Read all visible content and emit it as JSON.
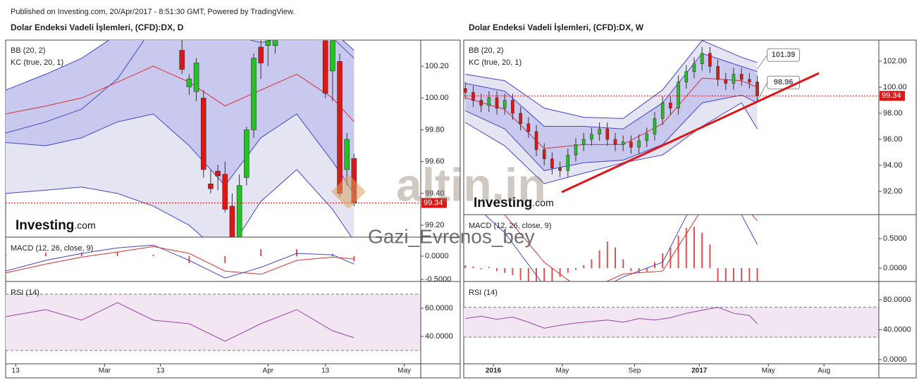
{
  "header": "Published on Investing.com, 20/Apr/2017 - 8:51:30 GMT, Powered by TradingView.",
  "watermark": "altin.in",
  "watermark_suffix": ".in",
  "watermark_user": "Gazi_Evrenos_bey",
  "logo": "Investing",
  "logo_suffix": ".com",
  "chart_data": [
    {
      "type": "candlestick",
      "title": "Dolar Endeksi Vadeli İşlemleri, (CFD):DX, D",
      "bb_label": "BB (20, 2)",
      "kc_label": "KC (true, 20, 1)",
      "colors": {
        "up": "#22c322",
        "down": "#e21515",
        "bb": "#e4e4f2",
        "kc": "#c9c9f0",
        "band_line": "#4646c8",
        "basis": "#d83030"
      },
      "x": [
        24,
        25,
        26,
        27,
        28,
        29,
        30,
        31,
        32,
        33,
        34,
        35,
        36,
        37,
        44,
        45,
        46,
        47,
        48
      ],
      "open": [
        100.3,
        100.07,
        100.04,
        100.0,
        99.46,
        99.54,
        99.52,
        99.32,
        99.12,
        99.5,
        99.8,
        100.32,
        100.33,
        100.33,
        100.36,
        100.17,
        100.23,
        99.55,
        99.62
      ],
      "high": [
        100.4,
        100.15,
        100.25,
        100.05,
        99.55,
        99.58,
        99.6,
        99.4,
        99.52,
        99.82,
        100.28,
        100.4,
        100.42,
        100.45,
        100.5,
        100.45,
        100.28,
        99.78,
        99.65
      ],
      "low": [
        100.15,
        100.02,
        99.98,
        99.5,
        99.4,
        99.42,
        99.28,
        98.9,
        98.95,
        99.45,
        99.75,
        100.12,
        100.2,
        100.28,
        100.0,
        99.98,
        99.38,
        99.45,
        99.32
      ],
      "close": [
        100.18,
        100.12,
        100.22,
        99.55,
        99.43,
        99.51,
        99.3,
        99.0,
        99.45,
        99.8,
        100.25,
        100.22,
        100.36,
        100.38,
        100.03,
        100.36,
        99.4,
        99.74,
        99.34
      ],
      "xlim": [
        -0.6,
        57.3
      ],
      "xticks": [
        {
          "value": 0.8,
          "label": "13"
        },
        {
          "value": 13.2,
          "label": "Mar"
        },
        {
          "value": 21,
          "label": "13"
        },
        {
          "value": 36,
          "label": "Apr"
        },
        {
          "value": 44,
          "label": "13"
        },
        {
          "value": 55,
          "label": "May"
        }
      ],
      "ylim": [
        99.125,
        100.364
      ],
      "yticks": [
        {
          "value": 99.2,
          "label": "99.20"
        },
        {
          "value": 99.4,
          "label": "99.40"
        },
        {
          "value": 99.6,
          "label": "99.60"
        },
        {
          "value": 99.8,
          "label": "99.80"
        },
        {
          "value": 100,
          "label": "100.00"
        },
        {
          "value": 100.2,
          "label": "100.20"
        }
      ],
      "last_price": 99.34,
      "bands": {
        "x": [
          -0.6,
          5,
          10,
          15,
          20,
          25,
          30,
          35,
          40,
          45,
          48
        ],
        "bb_upper": [
          99.78,
          99.85,
          99.93,
          100.12,
          100.45,
          100.7,
          100.8,
          100.7,
          100.55,
          100.38,
          100.25
        ],
        "bb_lower": [
          99.4,
          99.42,
          99.44,
          99.4,
          99.32,
          99.2,
          99.0,
          99.35,
          99.55,
          99.3,
          99.1
        ],
        "kc_upper": [
          100.05,
          100.15,
          100.25,
          100.4,
          100.45,
          100.48,
          100.4,
          100.35,
          100.4,
          100.42,
          100.3
        ],
        "kc_lower": [
          99.72,
          99.7,
          99.75,
          99.85,
          99.9,
          99.7,
          99.45,
          99.75,
          99.9,
          99.6,
          99.4
        ],
        "basis": [
          99.9,
          99.95,
          100.0,
          100.1,
          100.2,
          100.1,
          99.95,
          100.05,
          100.15,
          100.0,
          99.85
        ]
      },
      "macd": {
        "label": "MACD (12, 26, close, 9)",
        "x": [
          -0.6,
          5,
          10,
          15,
          20,
          25,
          30,
          35,
          40,
          45,
          48
        ],
        "macd": [
          -0.32,
          -0.09,
          0.06,
          0.18,
          0.24,
          -0.09,
          -0.47,
          -0.24,
          0.06,
          0.03,
          -0.17
        ],
        "signal": [
          -0.36,
          -0.17,
          -0.02,
          0.09,
          0.21,
          0.06,
          -0.32,
          -0.39,
          -0.09,
          -0.02,
          -0.06
        ],
        "hist_x": [
          -0.6,
          5,
          10,
          15,
          20,
          25,
          30,
          35,
          40,
          45,
          48
        ],
        "histogram": [
          0.04,
          0.08,
          0.08,
          0.09,
          0.03,
          -0.15,
          -0.15,
          0.15,
          0.15,
          0.05,
          -0.11
        ],
        "ylim": [
          -0.545,
          0.41
        ],
        "yticks": [
          {
            "value": -0.5,
            "label": "-0.5000"
          },
          {
            "value": 0,
            "label": "0.0000"
          }
        ]
      },
      "rsi": {
        "label": "RSI (14)",
        "x": [
          -0.6,
          5,
          10,
          15,
          20,
          25,
          30,
          35,
          40,
          45,
          48
        ],
        "values": [
          54,
          59,
          51.5,
          64,
          51.5,
          49,
          36.5,
          49,
          59,
          44,
          39
        ],
        "levels": [
          30,
          70
        ],
        "ylim": [
          20.5,
          79
        ],
        "yticks": [
          {
            "value": 40,
            "label": "40.0000"
          },
          {
            "value": 60,
            "label": "60.0000"
          }
        ]
      }
    },
    {
      "type": "candlestick",
      "title": "Dolar Endeksi Vadeli İşlemleri, (CFD):DX, W",
      "bb_label": "BB (20, 2)",
      "kc_label": "KC (true, 20, 1)",
      "colors": {
        "up": "#22c322",
        "down": "#e21515",
        "bb": "#e4e4f2",
        "kc": "#c9c9f0",
        "band_line": "#4646c8",
        "basis": "#d83030"
      },
      "x": [
        0,
        2,
        4,
        6,
        8,
        10,
        12,
        14,
        16,
        18,
        20,
        22,
        24,
        26,
        28,
        30,
        32,
        34,
        36,
        38,
        40,
        42,
        44,
        46,
        48,
        50,
        52,
        54,
        56,
        58,
        60,
        62,
        64,
        66,
        68,
        70,
        72,
        74
      ],
      "open": [
        99.9,
        99.6,
        99.0,
        98.6,
        99.2,
        98.4,
        99.0,
        98.0,
        97.2,
        96.6,
        95.2,
        94.5,
        93.8,
        93.6,
        94.8,
        95.6,
        96.0,
        96.4,
        96.8,
        96.0,
        95.6,
        95.8,
        95.4,
        95.9,
        96.4,
        97.6,
        98.8,
        98.4,
        100.4,
        101.2,
        101.8,
        102.6,
        101.6,
        100.6,
        100.3,
        101.0,
        100.6,
        100.4
      ],
      "high": [
        100.4,
        100.1,
        99.5,
        99.7,
        99.7,
        99.5,
        99.5,
        98.5,
        97.7,
        97.1,
        95.7,
        95.0,
        94.3,
        95.3,
        96.1,
        96.5,
        96.9,
        97.3,
        97.3,
        96.5,
        96.3,
        96.3,
        96.4,
        96.9,
        98.1,
        99.3,
        99.3,
        100.9,
        101.7,
        102.3,
        103.1,
        103.1,
        102.1,
        101.1,
        101.5,
        101.5,
        101.1,
        100.9
      ],
      "low": [
        99.1,
        98.5,
        98.1,
        98.1,
        97.9,
        97.9,
        97.5,
        96.7,
        96.1,
        94.7,
        94.0,
        93.3,
        93.1,
        93.1,
        94.3,
        95.1,
        95.5,
        95.9,
        95.5,
        95.1,
        95.1,
        94.9,
        94.9,
        95.4,
        95.9,
        97.1,
        97.9,
        97.9,
        99.9,
        100.7,
        101.3,
        101.1,
        100.1,
        99.8,
        99.8,
        100.1,
        99.9,
        98.84
      ],
      "close": [
        99.6,
        99.0,
        98.6,
        99.2,
        98.4,
        99.0,
        98.0,
        97.2,
        96.6,
        95.2,
        94.5,
        93.8,
        93.6,
        94.8,
        95.6,
        96.0,
        96.4,
        96.8,
        96.0,
        95.6,
        95.8,
        95.4,
        95.9,
        96.4,
        97.6,
        98.8,
        98.4,
        100.4,
        101.2,
        101.8,
        102.6,
        101.6,
        100.6,
        100.3,
        101.0,
        100.6,
        100.4,
        99.34
      ],
      "xlim": [
        -0.4,
        104.8
      ],
      "xticks": [
        {
          "value": 7.1,
          "label": "2016"
        },
        {
          "value": 24.6,
          "label": "May"
        },
        {
          "value": 42.9,
          "label": "Sep"
        },
        {
          "value": 59.3,
          "label": "2017"
        },
        {
          "value": 76.8,
          "label": "May"
        },
        {
          "value": 90.9,
          "label": "Aug"
        }
      ],
      "ylim": [
        90.22,
        103.62
      ],
      "yticks": [
        {
          "value": 92,
          "label": "92.00"
        },
        {
          "value": 94,
          "label": "94.00"
        },
        {
          "value": 96,
          "label": "96.00"
        },
        {
          "value": 98,
          "label": "98.00"
        },
        {
          "value": 100,
          "label": "100.00"
        },
        {
          "value": 102,
          "label": "102.00"
        }
      ],
      "last_price": 99.34,
      "annotations": [
        101.39,
        98.96
      ],
      "bands": {
        "x": [
          0,
          10,
          20,
          30,
          40,
          50,
          60,
          70,
          74
        ],
        "bb_upper": [
          101.0,
          100.5,
          98.4,
          97.7,
          97.6,
          99.8,
          103.6,
          102.3,
          101.9
        ],
        "bb_lower": [
          97.3,
          95.5,
          92.6,
          93.4,
          94.2,
          94.8,
          97.0,
          98.8,
          96.8
        ],
        "kc_upper": [
          100.3,
          99.7,
          97.0,
          97.0,
          96.8,
          98.8,
          102.6,
          101.6,
          101.2
        ],
        "kc_lower": [
          98.2,
          96.8,
          93.6,
          94.2,
          94.4,
          95.6,
          98.8,
          99.4,
          98.8
        ],
        "basis": [
          99.2,
          98.3,
          95.3,
          95.6,
          95.6,
          97.2,
          100.7,
          100.5,
          100.0
        ]
      },
      "macd": {
        "label": "MACD (12, 26, close, 9)",
        "x": [
          0,
          10,
          20,
          30,
          40,
          50,
          60,
          70,
          74
        ],
        "macd": [
          1.2,
          0.6,
          -0.3,
          -0.5,
          -0.15,
          0.1,
          1.4,
          0.9,
          0.4
        ],
        "signal": [
          1.3,
          0.9,
          0.1,
          -0.4,
          -0.1,
          -0.05,
          1.0,
          1.1,
          0.8
        ],
        "hist_x": [
          0,
          2,
          4,
          6,
          8,
          10,
          12,
          14,
          16,
          18,
          20,
          22,
          24,
          26,
          28,
          30,
          32,
          34,
          36,
          38,
          40,
          42,
          44,
          46,
          48,
          50,
          52,
          54,
          56,
          58,
          60,
          62,
          64,
          66,
          68,
          70,
          72,
          74
        ],
        "histogram": [
          0.05,
          0.03,
          -0.02,
          0.02,
          -0.05,
          -0.08,
          -0.12,
          -0.2,
          -0.25,
          -0.25,
          -0.25,
          -0.22,
          -0.15,
          -0.08,
          -0.03,
          0.05,
          0.15,
          0.3,
          0.45,
          0.35,
          0.15,
          -0.05,
          -0.08,
          -0.06,
          0.1,
          0.25,
          0.35,
          0.55,
          0.68,
          0.7,
          0.6,
          0.4,
          -0.25,
          -0.25,
          -0.25,
          -0.25,
          -0.25,
          -0.25
        ],
        "ylim": [
          -0.226,
          0.905
        ],
        "yticks": [
          {
            "value": 0,
            "label": "0.0000"
          },
          {
            "value": 0.5,
            "label": "0.5000"
          }
        ]
      },
      "rsi": {
        "label": "RSI (14)",
        "x": [
          0,
          4,
          8,
          12,
          16,
          20,
          24,
          28,
          32,
          36,
          40,
          44,
          48,
          52,
          56,
          60,
          64,
          68,
          72,
          74
        ],
        "values": [
          55,
          58,
          54,
          57,
          50,
          42,
          46,
          49,
          51,
          53,
          50,
          55,
          53,
          56,
          62,
          66,
          70,
          62,
          59,
          48
        ],
        "levels": [
          30,
          70
        ],
        "ylim": [
          -5.6,
          104.5
        ],
        "yticks": [
          {
            "value": 0,
            "label": "0.0000"
          },
          {
            "value": 40,
            "label": "40.0000"
          },
          {
            "value": 80,
            "label": "80.0000"
          }
        ]
      }
    }
  ]
}
